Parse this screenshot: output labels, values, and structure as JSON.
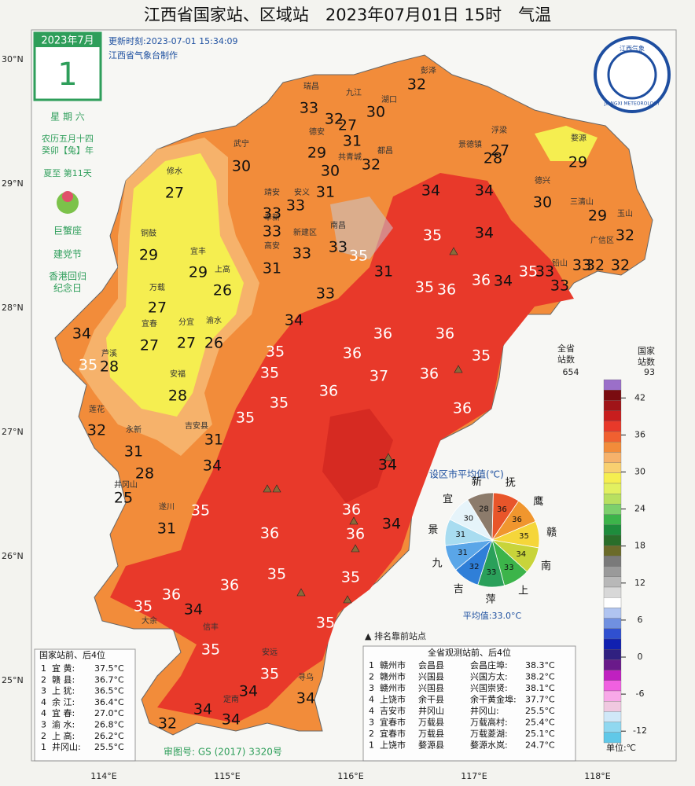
{
  "title": "江西省国家站、区域站　2023年07月01日 15时　气温",
  "calendar": {
    "month": "2023年7月",
    "day": "1",
    "weekday": "星 期 六",
    "lunar": "农历五月十四",
    "lunar_year": "癸卯【兔】年",
    "solar_term": "夏至 第11天",
    "zodiac": "巨蟹座",
    "festivals": [
      "建党节",
      "香港回归",
      "纪念日"
    ]
  },
  "update_time": "更新时刻:2023-07-01 15:34:09",
  "maker": "江西省气象台制作",
  "logo": {
    "cn": "江西气象",
    "en": "JIANGXI METEOROLOGY"
  },
  "latitudes": [
    "30°N",
    "29°N",
    "28°N",
    "27°N",
    "26°N",
    "25°N"
  ],
  "longitudes": [
    "114°E",
    "115°E",
    "116°E",
    "117°E",
    "118°E"
  ],
  "map_values": [
    32,
    33,
    32,
    30,
    27,
    31,
    29,
    30,
    32,
    30,
    27,
    31,
    34,
    34,
    27,
    28,
    29,
    30,
    29,
    33,
    33,
    33,
    33,
    32,
    29,
    33,
    35,
    35,
    34,
    31,
    31,
    29,
    26,
    36,
    34,
    35,
    33,
    33,
    33,
    32,
    32,
    35,
    36,
    33,
    27,
    34,
    34,
    27,
    27,
    26,
    36,
    36,
    35,
    28,
    35,
    36,
    37,
    36,
    35,
    35,
    28,
    36,
    35,
    36,
    32,
    35,
    31,
    31,
    34,
    28,
    34,
    25,
    35,
    36,
    31,
    36,
    36,
    34,
    35,
    36,
    36,
    35,
    35,
    34,
    35,
    35,
    35,
    34,
    32,
    34,
    34,
    34
  ],
  "stations": [
    "瑞昌",
    "九江",
    "湖口",
    "彭泽",
    "德安",
    "共青城",
    "都昌",
    "武宁",
    "修水",
    "浮梁",
    "景德镇",
    "婺源",
    "德兴",
    "三清山",
    "玉山",
    "靖安",
    "安义",
    "奉新",
    "新建区",
    "高安",
    "南昌",
    "铜鼓",
    "宜丰",
    "上高",
    "万载",
    "宜春",
    "分宜",
    "渝水",
    "芦溪",
    "安福",
    "莲花",
    "永新",
    "吉安县",
    "井冈山",
    "遂川",
    "大余",
    "信丰",
    "安远",
    "寻乌",
    "定南",
    "广信区",
    "铅山"
  ],
  "pie": {
    "title": "设区市平均值(℃)",
    "cities": [
      "新",
      "抚",
      "鹰",
      "赣",
      "南",
      "上",
      "萍",
      "吉",
      "九",
      "景",
      "宜"
    ],
    "values": [
      28,
      36,
      36,
      35,
      34,
      33,
      33,
      32,
      31,
      31,
      30
    ],
    "colors": [
      "#8c7b6b",
      "#e8552a",
      "#f0962e",
      "#f5d63a",
      "#c8d43a",
      "#3cb44a",
      "#2aa05a",
      "#2f7fd8",
      "#5aa6e8",
      "#a8dcf0",
      "#e6f4fa"
    ],
    "average": "平均值:33.0°C"
  },
  "legend": {
    "all_label": "全省\n站数",
    "all_count": 654,
    "national_label": "国家\n站数",
    "national_count": 93,
    "ticks": [
      42,
      36,
      30,
      24,
      18,
      12,
      6,
      0,
      -6,
      -12
    ],
    "unit": "单位:℃"
  },
  "marker_note": "▲ 排名靠前站点",
  "national_table": {
    "title": "国家站前、后4位",
    "rows": [
      [
        "1",
        "宜 黄:",
        "37.5°C"
      ],
      [
        "2",
        "赣 县:",
        "36.7°C"
      ],
      [
        "3",
        "上 犹:",
        "36.5°C"
      ],
      [
        "4",
        "余 江:",
        "36.4°C"
      ],
      [
        "4",
        "宜 春:",
        "27.0°C"
      ],
      [
        "3",
        "渝 水:",
        "26.8°C"
      ],
      [
        "2",
        "上 高:",
        "26.2°C"
      ],
      [
        "1",
        "井冈山:",
        "25.5°C"
      ]
    ]
  },
  "all_table": {
    "title": "全省观测站前、后4位",
    "rows": [
      [
        "1",
        "赣州市",
        "会昌县",
        "会昌庄埠:",
        "38.3°C"
      ],
      [
        "2",
        "赣州市",
        "兴国县",
        "兴国方太:",
        "38.2°C"
      ],
      [
        "3",
        "赣州市",
        "兴国县",
        "兴国崇贤:",
        "38.1°C"
      ],
      [
        "4",
        "上饶市",
        "余干县",
        "余干黄金埠:",
        "37.7°C"
      ],
      [
        "4",
        "吉安市",
        "井冈山",
        "井冈山:",
        "25.5°C"
      ],
      [
        "3",
        "宜春市",
        "万载县",
        "万载高村:",
        "25.4°C"
      ],
      [
        "2",
        "宜春市",
        "万载县",
        "万载菱湖:",
        "25.1°C"
      ],
      [
        "1",
        "上饶市",
        "婺源县",
        "婺源水岚:",
        "24.7°C"
      ]
    ]
  },
  "approval": "审图号: GS (2017) 3320号"
}
